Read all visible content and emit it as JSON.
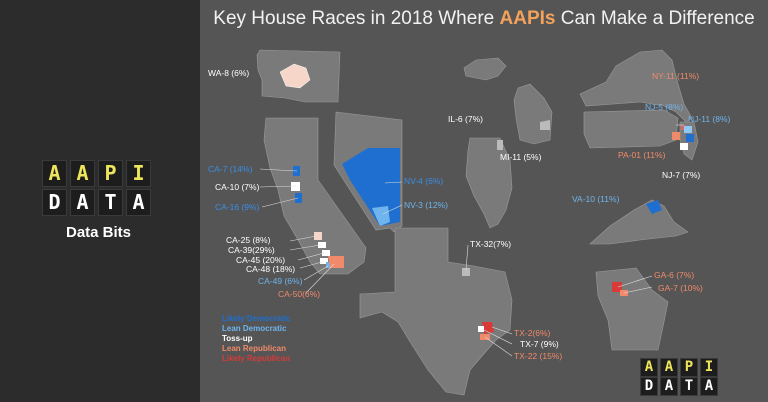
{
  "title": {
    "before": "Key House Races in 2018 Where ",
    "highlight": "AAPIs",
    "after": " Can Make a Difference"
  },
  "brand": {
    "line1": [
      "A",
      "A",
      "P",
      "I"
    ],
    "line2": [
      "D",
      "A",
      "T",
      "A"
    ],
    "tagline": "Data Bits"
  },
  "colors": {
    "likely_dem": "#1e6fd0",
    "lean_dem": "#6fb4ec",
    "tossup": "#ffffff",
    "lean_rep": "#f08a6a",
    "likely_rep": "#d83a3a",
    "state_fill": "#7a7a7a"
  },
  "legend": [
    {
      "label": "Likely Democratic",
      "rating": "likely_dem"
    },
    {
      "label": "Lean Democratic",
      "rating": "lean_dem"
    },
    {
      "label": "Toss-up",
      "rating": "tossup"
    },
    {
      "label": "Lean Republican",
      "rating": "lean_rep"
    },
    {
      "label": "Likely Republican",
      "rating": "likely_rep"
    }
  ],
  "races": [
    {
      "label": "WA-8 (6%)",
      "rating": "tossup"
    },
    {
      "label": "IL-6 (7%)",
      "rating": "tossup"
    },
    {
      "label": "MI-11 (5%)",
      "rating": "tossup"
    },
    {
      "label": "NY-11 (11%)",
      "rating": "lean_rep"
    },
    {
      "label": "NJ-5 (8%)",
      "rating": "lean_dem"
    },
    {
      "label": "NJ-11 (8%)",
      "rating": "lean_dem"
    },
    {
      "label": "PA-01 (11%)",
      "rating": "lean_rep"
    },
    {
      "label": "NJ-7 (7%)",
      "rating": "tossup"
    },
    {
      "label": "VA-10 (11%)",
      "rating": "lean_dem"
    },
    {
      "label": "CA-7 (14%)",
      "rating": "likely_dem"
    },
    {
      "label": "CA-10 (7%)",
      "rating": "tossup"
    },
    {
      "label": "CA-16 (9%)",
      "rating": "likely_dem"
    },
    {
      "label": "NV-4 (6%)",
      "rating": "likely_dem"
    },
    {
      "label": "NV-3 (12%)",
      "rating": "lean_dem"
    },
    {
      "label": "CA-25 (8%)",
      "rating": "tossup"
    },
    {
      "label": "CA-39(29%)",
      "rating": "tossup"
    },
    {
      "label": "CA-45 (20%)",
      "rating": "tossup"
    },
    {
      "label": "CA-48 (18%)",
      "rating": "tossup"
    },
    {
      "label": "CA-49 (6%)",
      "rating": "lean_dem"
    },
    {
      "label": "CA-50(6%)",
      "rating": "lean_rep"
    },
    {
      "label": "TX-32(7%)",
      "rating": "tossup"
    },
    {
      "label": "TX-2(6%)",
      "rating": "lean_rep"
    },
    {
      "label": "TX-7 (9%)",
      "rating": "tossup"
    },
    {
      "label": "TX-22 (15%)",
      "rating": "lean_rep"
    },
    {
      "label": "GA-6 (7%)",
      "rating": "lean_rep"
    },
    {
      "label": "GA-7 (10%)",
      "rating": "lean_rep"
    }
  ]
}
